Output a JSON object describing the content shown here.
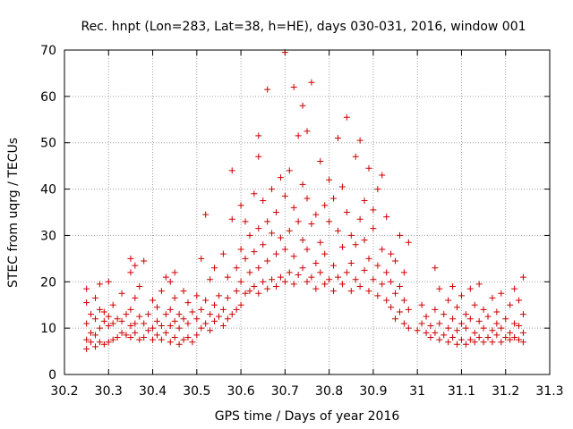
{
  "chart_data": {
    "type": "scatter",
    "title": "Rec. hnpt (Lon=283, Lat=38, h=HE), days 030-031, 2016, window 001",
    "xlabel": "GPS time / Days of year 2016",
    "ylabel": "STEC from uqrg / TECUs",
    "xlim": [
      30.2,
      31.3
    ],
    "ylim": [
      0,
      70
    ],
    "x_ticks": [
      "30.2",
      "30.3",
      "30.4",
      "30.5",
      "30.6",
      "30.7",
      "30.8",
      "30.9",
      "31",
      "31.1",
      "31.2",
      "31.3"
    ],
    "y_ticks": [
      "0",
      "10",
      "20",
      "30",
      "40",
      "50",
      "60",
      "70"
    ],
    "grid": true,
    "marker": "+",
    "color": "#cc0000",
    "series": [
      {
        "name": "STEC",
        "points": [
          [
            30.25,
            5.5
          ],
          [
            30.25,
            7.5
          ],
          [
            30.25,
            11.0
          ],
          [
            30.25,
            15.5
          ],
          [
            30.25,
            18.5
          ],
          [
            30.26,
            7.0
          ],
          [
            30.26,
            9.0
          ],
          [
            30.26,
            13.0
          ],
          [
            30.27,
            6.0
          ],
          [
            30.27,
            8.5
          ],
          [
            30.27,
            12.0
          ],
          [
            30.27,
            16.5
          ],
          [
            30.28,
            7.0
          ],
          [
            30.28,
            10.0
          ],
          [
            30.28,
            14.0
          ],
          [
            30.28,
            19.5
          ],
          [
            30.29,
            6.5
          ],
          [
            30.29,
            11.5
          ],
          [
            30.29,
            13.5
          ],
          [
            30.3,
            7.0
          ],
          [
            30.3,
            10.5
          ],
          [
            30.3,
            12.5
          ],
          [
            30.3,
            20.0
          ],
          [
            30.31,
            7.5
          ],
          [
            30.31,
            11.0
          ],
          [
            30.31,
            15.0
          ],
          [
            30.32,
            8.0
          ],
          [
            30.32,
            12.0
          ],
          [
            30.33,
            9.0
          ],
          [
            30.33,
            11.5
          ],
          [
            30.33,
            17.5
          ],
          [
            30.34,
            8.5
          ],
          [
            30.34,
            13.0
          ],
          [
            30.35,
            8.0
          ],
          [
            30.35,
            10.5
          ],
          [
            30.35,
            14.0
          ],
          [
            30.35,
            22.0
          ],
          [
            30.35,
            25.0
          ],
          [
            30.36,
            9.0
          ],
          [
            30.36,
            11.0
          ],
          [
            30.36,
            16.5
          ],
          [
            30.36,
            23.5
          ],
          [
            30.37,
            7.5
          ],
          [
            30.37,
            12.5
          ],
          [
            30.37,
            19.0
          ],
          [
            30.38,
            8.0
          ],
          [
            30.38,
            11.0
          ],
          [
            30.38,
            24.5
          ],
          [
            30.39,
            9.5
          ],
          [
            30.39,
            13.0
          ],
          [
            30.4,
            7.5
          ],
          [
            30.4,
            10.0
          ],
          [
            30.4,
            16.0
          ],
          [
            30.41,
            8.5
          ],
          [
            30.41,
            11.5
          ],
          [
            30.41,
            14.5
          ],
          [
            30.42,
            7.5
          ],
          [
            30.42,
            10.5
          ],
          [
            30.42,
            18.0
          ],
          [
            30.43,
            9.0
          ],
          [
            30.43,
            13.0
          ],
          [
            30.43,
            21.0
          ],
          [
            30.44,
            7.0
          ],
          [
            30.44,
            10.5
          ],
          [
            30.44,
            14.0
          ],
          [
            30.44,
            20.0
          ],
          [
            30.45,
            8.0
          ],
          [
            30.45,
            11.5
          ],
          [
            30.45,
            16.5
          ],
          [
            30.45,
            22.0
          ],
          [
            30.46,
            6.5
          ],
          [
            30.46,
            10.0
          ],
          [
            30.46,
            13.0
          ],
          [
            30.47,
            7.5
          ],
          [
            30.47,
            12.0
          ],
          [
            30.47,
            18.0
          ],
          [
            30.48,
            8.0
          ],
          [
            30.48,
            11.0
          ],
          [
            30.48,
            15.5
          ],
          [
            30.49,
            7.0
          ],
          [
            30.49,
            13.5
          ],
          [
            30.5,
            8.5
          ],
          [
            30.5,
            12.0
          ],
          [
            30.5,
            17.0
          ],
          [
            30.51,
            10.0
          ],
          [
            30.51,
            14.0
          ],
          [
            30.51,
            25.0
          ],
          [
            30.52,
            11.0
          ],
          [
            30.52,
            16.0
          ],
          [
            30.52,
            34.5
          ],
          [
            30.53,
            9.5
          ],
          [
            30.53,
            13.0
          ],
          [
            30.53,
            20.5
          ],
          [
            30.54,
            11.5
          ],
          [
            30.54,
            15.0
          ],
          [
            30.54,
            23.0
          ],
          [
            30.55,
            12.5
          ],
          [
            30.55,
            17.0
          ],
          [
            30.56,
            10.5
          ],
          [
            30.56,
            14.0
          ],
          [
            30.56,
            26.0
          ],
          [
            30.57,
            12.0
          ],
          [
            30.57,
            16.5
          ],
          [
            30.57,
            21.0
          ],
          [
            30.58,
            13.0
          ],
          [
            30.58,
            33.5
          ],
          [
            30.58,
            44.0
          ],
          [
            30.59,
            14.0
          ],
          [
            30.59,
            18.0
          ],
          [
            30.59,
            23.0
          ],
          [
            30.6,
            15.0
          ],
          [
            30.6,
            20.0
          ],
          [
            30.6,
            27.0
          ],
          [
            30.6,
            36.5
          ],
          [
            30.61,
            17.5
          ],
          [
            30.61,
            25.0
          ],
          [
            30.61,
            33.0
          ],
          [
            30.62,
            18.0
          ],
          [
            30.62,
            22.0
          ],
          [
            30.62,
            30.0
          ],
          [
            30.63,
            19.0
          ],
          [
            30.63,
            26.5
          ],
          [
            30.63,
            39.0
          ],
          [
            30.64,
            17.5
          ],
          [
            30.64,
            23.0
          ],
          [
            30.64,
            31.5
          ],
          [
            30.64,
            47.0
          ],
          [
            30.64,
            51.5
          ],
          [
            30.65,
            20.0
          ],
          [
            30.65,
            28.0
          ],
          [
            30.65,
            37.5
          ],
          [
            30.66,
            18.5
          ],
          [
            30.66,
            24.5
          ],
          [
            30.66,
            33.0
          ],
          [
            30.66,
            61.5
          ],
          [
            30.67,
            20.5
          ],
          [
            30.67,
            30.5
          ],
          [
            30.67,
            40.0
          ],
          [
            30.68,
            19.0
          ],
          [
            30.68,
            26.0
          ],
          [
            30.68,
            35.0
          ],
          [
            30.69,
            21.0
          ],
          [
            30.69,
            29.5
          ],
          [
            30.69,
            42.5
          ],
          [
            30.7,
            20.0
          ],
          [
            30.7,
            27.0
          ],
          [
            30.7,
            38.5
          ],
          [
            30.7,
            69.5
          ],
          [
            30.71,
            22.0
          ],
          [
            30.71,
            31.0
          ],
          [
            30.71,
            44.0
          ],
          [
            30.72,
            19.5
          ],
          [
            30.72,
            25.5
          ],
          [
            30.72,
            36.0
          ],
          [
            30.72,
            62.0
          ],
          [
            30.73,
            21.5
          ],
          [
            30.73,
            33.0
          ],
          [
            30.73,
            51.5
          ],
          [
            30.74,
            23.0
          ],
          [
            30.74,
            29.0
          ],
          [
            30.74,
            41.0
          ],
          [
            30.74,
            58.0
          ],
          [
            30.75,
            20.0
          ],
          [
            30.75,
            27.0
          ],
          [
            30.75,
            38.0
          ],
          [
            30.75,
            52.5
          ],
          [
            30.76,
            21.0
          ],
          [
            30.76,
            32.5
          ],
          [
            30.76,
            63.0
          ],
          [
            30.77,
            18.5
          ],
          [
            30.77,
            24.0
          ],
          [
            30.77,
            34.5
          ],
          [
            30.78,
            22.0
          ],
          [
            30.78,
            28.5
          ],
          [
            30.78,
            46.0
          ],
          [
            30.79,
            19.5
          ],
          [
            30.79,
            26.0
          ],
          [
            30.79,
            36.5
          ],
          [
            30.8,
            20.5
          ],
          [
            30.8,
            33.0
          ],
          [
            30.8,
            42.0
          ],
          [
            30.81,
            18.0
          ],
          [
            30.81,
            23.5
          ],
          [
            30.81,
            38.0
          ],
          [
            30.82,
            21.0
          ],
          [
            30.82,
            31.0
          ],
          [
            30.82,
            51.0
          ],
          [
            30.83,
            19.5
          ],
          [
            30.83,
            27.5
          ],
          [
            30.83,
            40.5
          ],
          [
            30.84,
            22.0
          ],
          [
            30.84,
            35.0
          ],
          [
            30.84,
            55.5
          ],
          [
            30.85,
            18.0
          ],
          [
            30.85,
            24.0
          ],
          [
            30.85,
            30.0
          ],
          [
            30.86,
            20.5
          ],
          [
            30.86,
            28.0
          ],
          [
            30.86,
            47.0
          ],
          [
            30.87,
            19.0
          ],
          [
            30.87,
            33.5
          ],
          [
            30.87,
            50.5
          ],
          [
            30.88,
            22.5
          ],
          [
            30.88,
            29.0
          ],
          [
            30.88,
            37.5
          ],
          [
            30.89,
            18.0
          ],
          [
            30.89,
            25.0
          ],
          [
            30.89,
            44.5
          ],
          [
            30.9,
            20.5
          ],
          [
            30.9,
            31.5
          ],
          [
            30.9,
            35.5
          ],
          [
            30.91,
            17.0
          ],
          [
            30.91,
            23.5
          ],
          [
            30.91,
            40.0
          ],
          [
            30.92,
            19.5
          ],
          [
            30.92,
            27.0
          ],
          [
            30.92,
            43.0
          ],
          [
            30.93,
            16.0
          ],
          [
            30.93,
            22.0
          ],
          [
            30.93,
            34.0
          ],
          [
            30.94,
            14.5
          ],
          [
            30.94,
            20.0
          ],
          [
            30.94,
            26.0
          ],
          [
            30.95,
            12.0
          ],
          [
            30.95,
            17.5
          ],
          [
            30.95,
            24.5
          ],
          [
            30.96,
            13.5
          ],
          [
            30.96,
            19.0
          ],
          [
            30.96,
            30.0
          ],
          [
            30.97,
            11.0
          ],
          [
            30.97,
            16.0
          ],
          [
            30.97,
            22.0
          ],
          [
            30.98,
            10.0
          ],
          [
            30.98,
            14.0
          ],
          [
            30.98,
            28.5
          ],
          [
            31.0,
            9.5
          ],
          [
            31.01,
            11.0
          ],
          [
            31.01,
            15.0
          ],
          [
            31.02,
            9.0
          ],
          [
            31.02,
            12.5
          ],
          [
            31.03,
            8.0
          ],
          [
            31.03,
            10.5
          ],
          [
            31.04,
            9.0
          ],
          [
            31.04,
            14.0
          ],
          [
            31.04,
            23.0
          ],
          [
            31.05,
            7.5
          ],
          [
            31.05,
            11.0
          ],
          [
            31.05,
            18.5
          ],
          [
            31.06,
            8.5
          ],
          [
            31.06,
            13.0
          ],
          [
            31.07,
            7.0
          ],
          [
            31.07,
            10.0
          ],
          [
            31.07,
            16.0
          ],
          [
            31.08,
            8.0
          ],
          [
            31.08,
            12.0
          ],
          [
            31.08,
            19.0
          ],
          [
            31.09,
            6.5
          ],
          [
            31.09,
            9.5
          ],
          [
            31.09,
            14.5
          ],
          [
            31.1,
            7.5
          ],
          [
            31.1,
            11.0
          ],
          [
            31.1,
            17.0
          ],
          [
            31.11,
            6.5
          ],
          [
            31.11,
            10.0
          ],
          [
            31.11,
            13.0
          ],
          [
            31.12,
            7.5
          ],
          [
            31.12,
            12.0
          ],
          [
            31.12,
            18.5
          ],
          [
            31.13,
            7.0
          ],
          [
            31.13,
            9.0
          ],
          [
            31.13,
            15.0
          ],
          [
            31.14,
            8.0
          ],
          [
            31.14,
            11.5
          ],
          [
            31.14,
            19.5
          ],
          [
            31.15,
            7.0
          ],
          [
            31.15,
            10.0
          ],
          [
            31.15,
            14.0
          ],
          [
            31.16,
            8.0
          ],
          [
            31.16,
            12.5
          ],
          [
            31.17,
            7.0
          ],
          [
            31.17,
            9.5
          ],
          [
            31.17,
            16.5
          ],
          [
            31.18,
            8.5
          ],
          [
            31.18,
            11.0
          ],
          [
            31.18,
            13.5
          ],
          [
            31.19,
            7.0
          ],
          [
            31.19,
            10.0
          ],
          [
            31.19,
            17.5
          ],
          [
            31.2,
            8.0
          ],
          [
            31.2,
            12.0
          ],
          [
            31.21,
            7.5
          ],
          [
            31.21,
            9.0
          ],
          [
            31.21,
            15.0
          ],
          [
            31.22,
            8.0
          ],
          [
            31.22,
            11.0
          ],
          [
            31.22,
            18.5
          ],
          [
            31.23,
            7.5
          ],
          [
            31.23,
            10.5
          ],
          [
            31.23,
            16.0
          ],
          [
            31.24,
            7.0
          ],
          [
            31.24,
            9.0
          ],
          [
            31.24,
            13.0
          ],
          [
            31.24,
            21.0
          ]
        ]
      }
    ]
  }
}
